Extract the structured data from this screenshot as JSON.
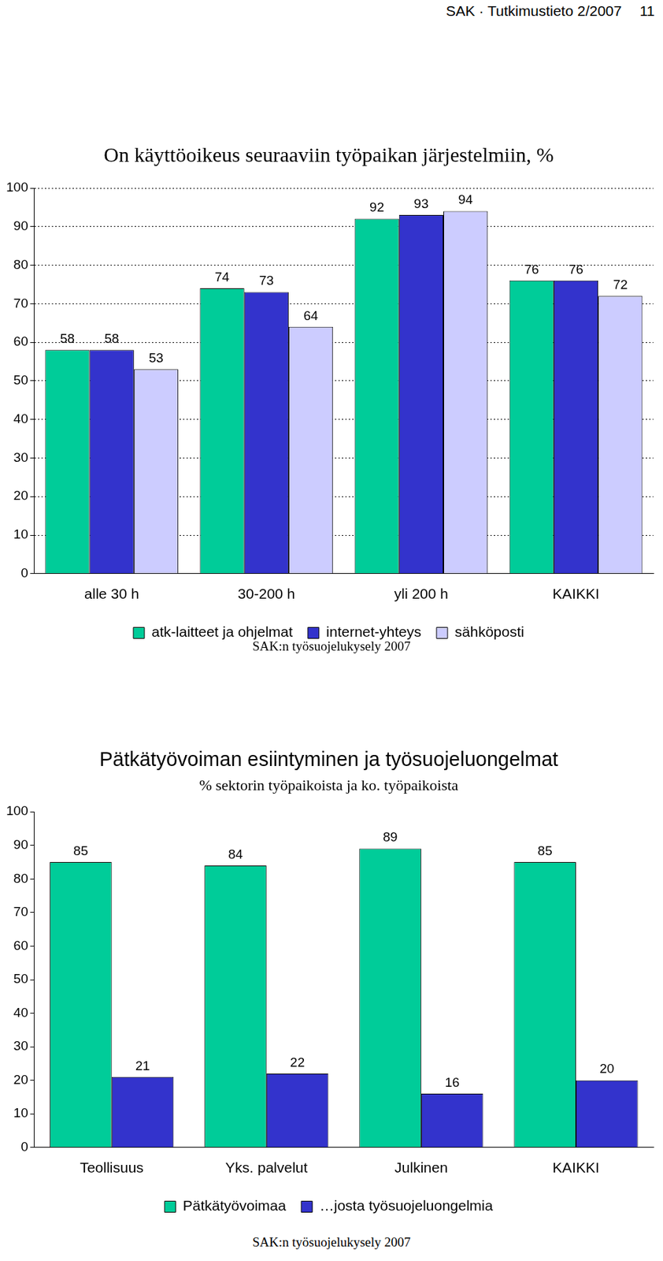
{
  "header": {
    "text": "SAK · Tutkimustieto 2/2007",
    "page": 11
  },
  "chart_data": [
    {
      "type": "bar",
      "title": "On käyttöoikeus seuraaviin työpaikan järjestelmiin, %",
      "annotation": "SAK:n työsuojelukysely 2007",
      "categories": [
        "alle 30 h",
        "30-200 h",
        "yli 200 h",
        "KAIKKI"
      ],
      "series": [
        {
          "name": "atk-laitteet ja ohjelmat",
          "color": "#00cc99",
          "values": [
            58,
            74,
            92,
            76
          ]
        },
        {
          "name": "internet-yhteys",
          "color": "#3333cc",
          "values": [
            58,
            73,
            93,
            76
          ]
        },
        {
          "name": "sähköposti",
          "color": "#ccccff",
          "values": [
            53,
            64,
            94,
            72
          ]
        }
      ],
      "ylim": [
        0,
        100
      ],
      "yticks": [
        0,
        10,
        20,
        30,
        40,
        50,
        60,
        70,
        80,
        90,
        100
      ],
      "grid": true,
      "legend": "bottom",
      "data_labels": true
    },
    {
      "type": "bar",
      "title": "Pätkätyövoiman esiintyminen ja työsuojeluongelmat",
      "subtitle": "% sektorin työpaikoista ja ko. työpaikoista",
      "annotation": "SAK:n työsuojelukysely 2007",
      "categories": [
        "Teollisuus",
        "Yks. palvelut",
        "Julkinen",
        "KAIKKI"
      ],
      "series": [
        {
          "name": "Pätkätyövoimaa",
          "color": "#00cc99",
          "values": [
            85,
            84,
            89,
            85
          ]
        },
        {
          "name": "…josta työsuojeluongelmia",
          "color": "#3333cc",
          "values": [
            21,
            22,
            16,
            20
          ]
        }
      ],
      "ylim": [
        0,
        100
      ],
      "yticks": [
        0,
        10,
        20,
        30,
        40,
        50,
        60,
        70,
        80,
        90,
        100
      ],
      "grid": false,
      "legend": "bottom",
      "data_labels": true
    }
  ]
}
